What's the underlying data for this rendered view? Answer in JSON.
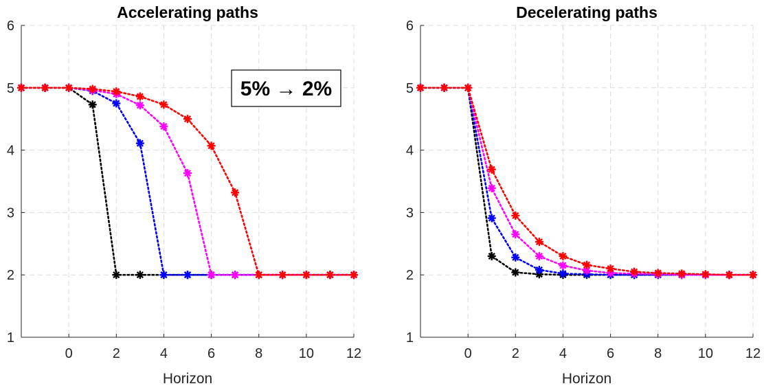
{
  "chart_data": [
    {
      "type": "line",
      "title": "Accelerating paths",
      "xlabel": "Horizon",
      "ylabel": "",
      "xlim": [
        -2,
        12
      ],
      "ylim": [
        1,
        6
      ],
      "xticks": [
        0,
        2,
        4,
        6,
        8,
        10,
        12
      ],
      "yticks": [
        1,
        2,
        3,
        4,
        5,
        6
      ],
      "grid": true,
      "annotation": "5% → 2%",
      "series": [
        {
          "color": "#ff0000",
          "x": [
            -2,
            -1,
            0,
            1,
            2,
            3,
            4,
            5,
            6,
            7,
            8,
            9,
            10,
            11,
            12
          ],
          "values": [
            5,
            5,
            5,
            4.98,
            4.94,
            4.86,
            4.73,
            4.5,
            4.07,
            3.32,
            2,
            2,
            2,
            2,
            2
          ]
        },
        {
          "color": "#ff00ff",
          "x": [
            -2,
            -1,
            0,
            1,
            2,
            3,
            4,
            5,
            6,
            7,
            8,
            9,
            10,
            11,
            12
          ],
          "values": [
            5,
            5,
            5,
            4.96,
            4.9,
            4.72,
            4.38,
            3.63,
            2,
            2,
            2,
            2,
            2,
            2,
            2
          ]
        },
        {
          "color": "#0000ff",
          "x": [
            -2,
            -1,
            0,
            1,
            2,
            3,
            4,
            5,
            6,
            7,
            8,
            9,
            10,
            11,
            12
          ],
          "values": [
            5,
            5,
            5,
            4.95,
            4.75,
            4.11,
            2,
            2,
            2,
            2,
            2,
            2,
            2,
            2,
            2
          ]
        },
        {
          "color": "#000000",
          "x": [
            -2,
            -1,
            0,
            1,
            2,
            3,
            4,
            5,
            6,
            7,
            8,
            9,
            10,
            11,
            12
          ],
          "values": [
            5,
            5,
            5,
            4.73,
            2,
            2,
            2,
            2,
            2,
            2,
            2,
            2,
            2,
            2,
            2
          ]
        }
      ]
    },
    {
      "type": "line",
      "title": "Decelerating paths",
      "xlabel": "Horizon",
      "ylabel": "",
      "xlim": [
        -2,
        12
      ],
      "ylim": [
        1,
        6
      ],
      "xticks": [
        0,
        2,
        4,
        6,
        8,
        10,
        12
      ],
      "yticks": [
        1,
        2,
        3,
        4,
        5,
        6
      ],
      "grid": true,
      "series": [
        {
          "color": "#ff0000",
          "x": [
            -2,
            -1,
            0,
            1,
            2,
            3,
            4,
            5,
            6,
            7,
            8,
            9,
            10,
            11,
            12
          ],
          "values": [
            5,
            5,
            5,
            3.69,
            2.95,
            2.53,
            2.3,
            2.16,
            2.1,
            2.05,
            2.03,
            2.02,
            2.01,
            2,
            2
          ]
        },
        {
          "color": "#ff00ff",
          "x": [
            -2,
            -1,
            0,
            1,
            2,
            3,
            4,
            5,
            6,
            7,
            8,
            9,
            10,
            11,
            12
          ],
          "values": [
            5,
            5,
            5,
            3.39,
            2.65,
            2.3,
            2.15,
            2.07,
            2.03,
            2.02,
            2.01,
            2,
            2,
            2,
            2
          ]
        },
        {
          "color": "#0000ff",
          "x": [
            -2,
            -1,
            0,
            1,
            2,
            3,
            4,
            5,
            6,
            7,
            8,
            9,
            10,
            11,
            12
          ],
          "values": [
            5,
            5,
            5,
            2.91,
            2.28,
            2.08,
            2.02,
            2.01,
            2,
            2,
            2,
            2,
            2,
            2,
            2
          ]
        },
        {
          "color": "#000000",
          "x": [
            -2,
            -1,
            0,
            1,
            2,
            3,
            4,
            5,
            6,
            7,
            8,
            9,
            10,
            11,
            12
          ],
          "values": [
            5,
            5,
            5,
            2.3,
            2.04,
            2.01,
            2,
            2,
            2,
            2,
            2,
            2,
            2,
            2,
            2
          ]
        }
      ]
    }
  ]
}
